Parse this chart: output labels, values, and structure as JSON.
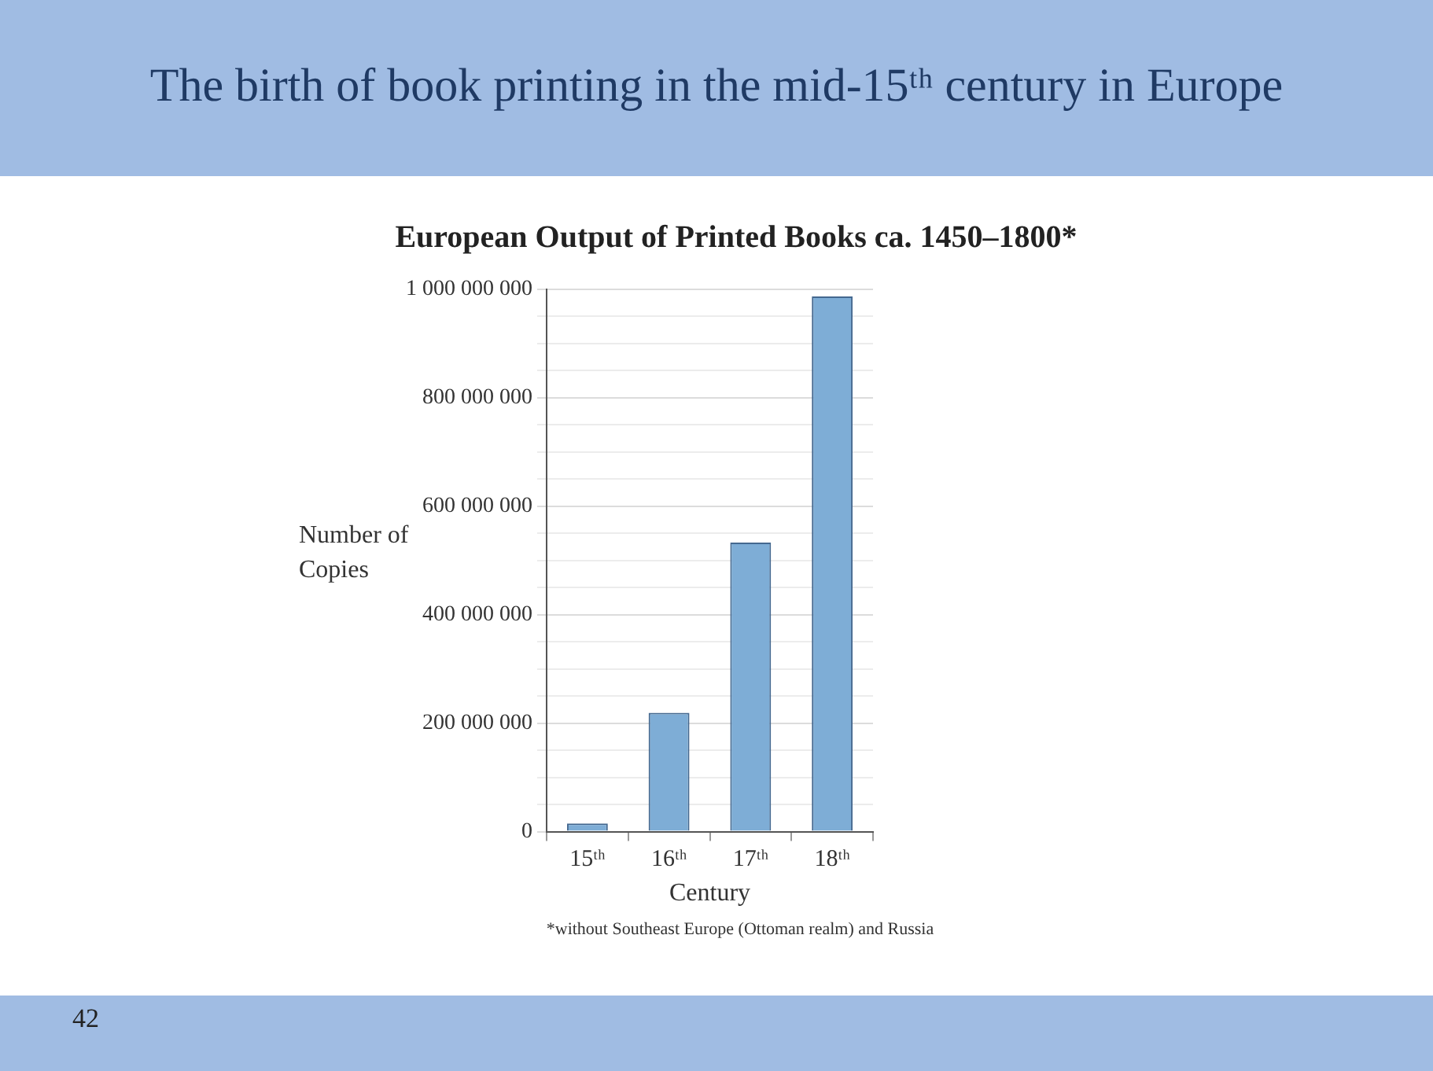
{
  "chart_data": {
    "type": "bar",
    "title": "The birth of book printing in the mid-15ᵗʰ century in Europe",
    "subtitle": "European Output of Printed Books ca. 1450–1800*",
    "xlabel": "Century",
    "ylabel": "Number of Copies",
    "categories": [
      "15ᵗʰ",
      "16ᵗʰ",
      "17ᵗʰ",
      "18ᵗʰ"
    ],
    "values": [
      15000000,
      219000000,
      533000000,
      987000000
    ],
    "color": "#7eadd6",
    "ylim": [
      0,
      1000000000
    ],
    "yticks": [
      {
        "value": 0,
        "label": "0"
      },
      {
        "value": 50000000,
        "label": null
      },
      {
        "value": 100000000,
        "label": null
      },
      {
        "value": 150000000,
        "label": null
      },
      {
        "value": 200000000,
        "label": "200 000 000"
      },
      {
        "value": 250000000,
        "label": null
      },
      {
        "value": 300000000,
        "label": null
      },
      {
        "value": 350000000,
        "label": null
      },
      {
        "value": 400000000,
        "label": "400 000 000"
      },
      {
        "value": 450000000,
        "label": null
      },
      {
        "value": 500000000,
        "label": null
      },
      {
        "value": 550000000,
        "label": null
      },
      {
        "value": 600000000,
        "label": "600 000 000"
      },
      {
        "value": 650000000,
        "label": null
      },
      {
        "value": 700000000,
        "label": null
      },
      {
        "value": 750000000,
        "label": null
      },
      {
        "value": 800000000,
        "label": "800 000 000"
      },
      {
        "value": 850000000,
        "label": null
      },
      {
        "value": 900000000,
        "label": null
      },
      {
        "value": 950000000,
        "label": null
      },
      {
        "value": 1000000000,
        "label": "1 000 000 000"
      }
    ],
    "grid": "y",
    "annotations": [
      "*without Southeast Europe (Ottoman realm) and Russia",
      "42"
    ]
  }
}
